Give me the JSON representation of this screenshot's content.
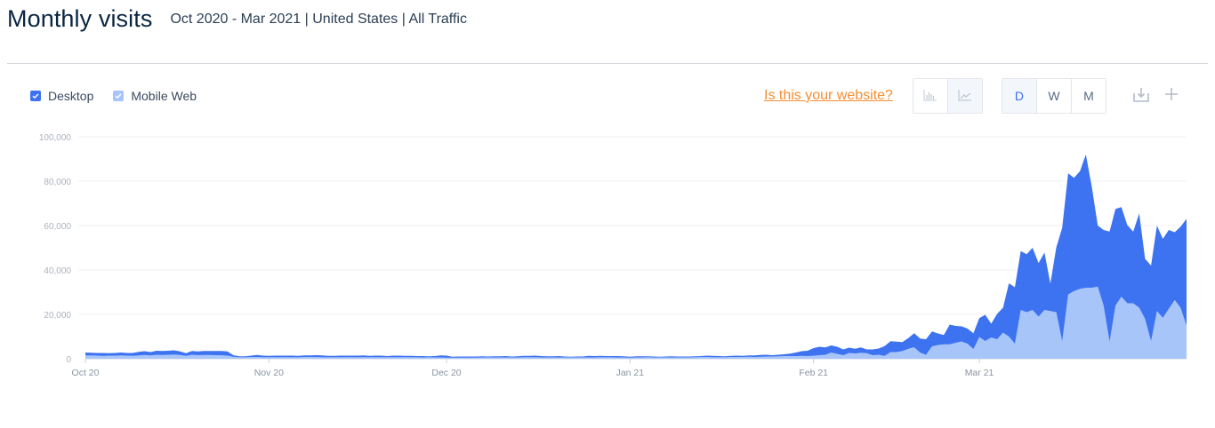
{
  "header": {
    "title": "Monthly visits",
    "subtitle": "Oct 2020 - Mar 2021 | United States | All Traffic"
  },
  "legend": {
    "items": [
      {
        "label": "Desktop",
        "checked": true,
        "color": "#3d73f0"
      },
      {
        "label": "Mobile Web",
        "checked": true,
        "color": "#a8c5fa"
      }
    ]
  },
  "toolbar": {
    "claim_link": "Is this your website?",
    "chart_type_buttons": [
      {
        "icon": "bar-chart-icon",
        "active": false
      },
      {
        "icon": "line-chart-icon",
        "active": true
      }
    ],
    "granularity_buttons": [
      {
        "label": "D",
        "active": true
      },
      {
        "label": "W",
        "active": false
      },
      {
        "label": "M",
        "active": false
      }
    ],
    "download_icon": "download-icon",
    "add_icon": "plus-icon"
  },
  "colors": {
    "desktop": "#3d73f0",
    "mobile": "#a8c5fa",
    "accent_orange": "#f58d2f",
    "grid": "#f0f1f3",
    "axis_text": "#a9b2bf"
  },
  "chart_data": {
    "type": "area",
    "stacked": true,
    "title": "Monthly visits",
    "subtitle": "Oct 2020 - Mar 2021 | United States | All Traffic",
    "xlabel": "",
    "ylabel": "",
    "granularity": "daily",
    "x_start": "2020-10-01",
    "x_end": "2021-03-31",
    "x_tick_labels": [
      "Oct 20",
      "Nov 20",
      "Dec 20",
      "Jan 21",
      "Feb 21",
      "Mar 21"
    ],
    "x_tick_day_index": [
      0,
      31,
      61,
      92,
      123,
      151
    ],
    "y_tick_labels": [
      "0",
      "20,000",
      "40,000",
      "60,000",
      "80,000",
      "100,000"
    ],
    "y_ticks": [
      0,
      20000,
      40000,
      60000,
      80000,
      100000
    ],
    "ylim": [
      0,
      100000
    ],
    "grid": true,
    "legend_position": "top-left",
    "series": [
      {
        "name": "Mobile Web",
        "color": "#a8c5fa",
        "layer": "bottom",
        "values": [
          1500,
          1500,
          1400,
          1300,
          1400,
          1400,
          1500,
          1400,
          1300,
          1500,
          1700,
          1500,
          1800,
          1700,
          1800,
          1900,
          1700,
          1300,
          1800,
          1600,
          1700,
          1700,
          1600,
          1600,
          1400,
          900,
          700,
          700,
          800,
          800,
          700,
          700,
          700,
          700,
          700,
          700,
          700,
          800,
          800,
          800,
          700,
          700,
          700,
          700,
          700,
          700,
          700,
          700,
          700,
          700,
          700,
          700,
          700,
          700,
          700,
          700,
          700,
          600,
          700,
          600,
          600,
          500,
          500,
          500,
          500,
          500,
          500,
          600,
          600,
          600,
          600,
          600,
          600,
          600,
          700,
          700,
          700,
          600,
          600,
          600,
          600,
          600,
          600,
          600,
          600,
          600,
          600,
          700,
          700,
          700,
          600,
          600,
          500,
          600,
          600,
          700,
          600,
          600,
          600,
          600,
          600,
          600,
          600,
          700,
          800,
          800,
          700,
          700,
          700,
          800,
          800,
          800,
          900,
          800,
          900,
          1000,
          1000,
          1100,
          1200,
          1200,
          1200,
          1300,
          1200,
          1400,
          1600,
          1800,
          2800,
          2200,
          1600,
          2600,
          2400,
          2700,
          2500,
          1600,
          1800,
          1300,
          3000,
          3000,
          3500,
          4500,
          5200,
          2800,
          1800,
          5600,
          6200,
          6500,
          6500,
          7200,
          7800,
          6800,
          4400,
          9800,
          8000,
          9600,
          8800,
          11800,
          10000,
          6800,
          22000,
          21000,
          22000,
          19000,
          22000,
          21500,
          21000,
          8000,
          29000,
          30500,
          31500,
          32000,
          32000,
          32500,
          24000,
          7800,
          24000,
          28000,
          25000,
          25000,
          23000,
          18000,
          8000,
          21500,
          18500,
          22500,
          26500,
          23000,
          15000
        ],
        "note": "values estimated from pixel heights"
      },
      {
        "name": "Desktop",
        "color": "#3d73f0",
        "layer": "top (stacked)",
        "values": [
          1300,
          1200,
          1200,
          1300,
          1100,
          1200,
          1300,
          1200,
          1300,
          1600,
          1700,
          1500,
          1800,
          1800,
          1800,
          1900,
          1600,
          1200,
          1700,
          1700,
          1800,
          1800,
          1900,
          1900,
          1900,
          700,
          400,
          400,
          600,
          900,
          700,
          600,
          700,
          700,
          700,
          700,
          600,
          700,
          700,
          800,
          800,
          600,
          600,
          700,
          700,
          700,
          700,
          800,
          600,
          700,
          700,
          500,
          700,
          700,
          600,
          600,
          500,
          600,
          400,
          600,
          900,
          900,
          400,
          500,
          500,
          500,
          500,
          500,
          400,
          500,
          500,
          600,
          400,
          500,
          600,
          600,
          700,
          600,
          500,
          500,
          600,
          400,
          300,
          400,
          400,
          700,
          600,
          600,
          500,
          500,
          600,
          500,
          400,
          500,
          500,
          400,
          400,
          300,
          400,
          500,
          400,
          400,
          400,
          400,
          400,
          600,
          600,
          500,
          400,
          500,
          600,
          500,
          600,
          700,
          800,
          800,
          600,
          700,
          800,
          1100,
          1600,
          2100,
          2400,
          3400,
          3800,
          3300,
          3200,
          3200,
          2600,
          2400,
          2100,
          2400,
          1700,
          2600,
          2800,
          4400,
          4900,
          4700,
          4000,
          4800,
          6300,
          6300,
          7000,
          6700,
          5200,
          4200,
          8900,
          7600,
          6800,
          6800,
          7100,
          8500,
          11800,
          6200,
          11400,
          11200,
          24000,
          25400,
          26500,
          26100,
          28000,
          24100,
          25800,
          12400,
          29200,
          51000,
          54500,
          51000,
          53000,
          60000,
          45500,
          27500,
          34000,
          49500,
          43500,
          40300,
          35200,
          32300,
          42500,
          27000,
          34000,
          38500,
          35500,
          35500,
          30500,
          36500,
          48000,
          41800,
          38000
        ]
      }
    ],
    "peak_total": 92000,
    "peak_date_label": "mid-Mar 21"
  }
}
